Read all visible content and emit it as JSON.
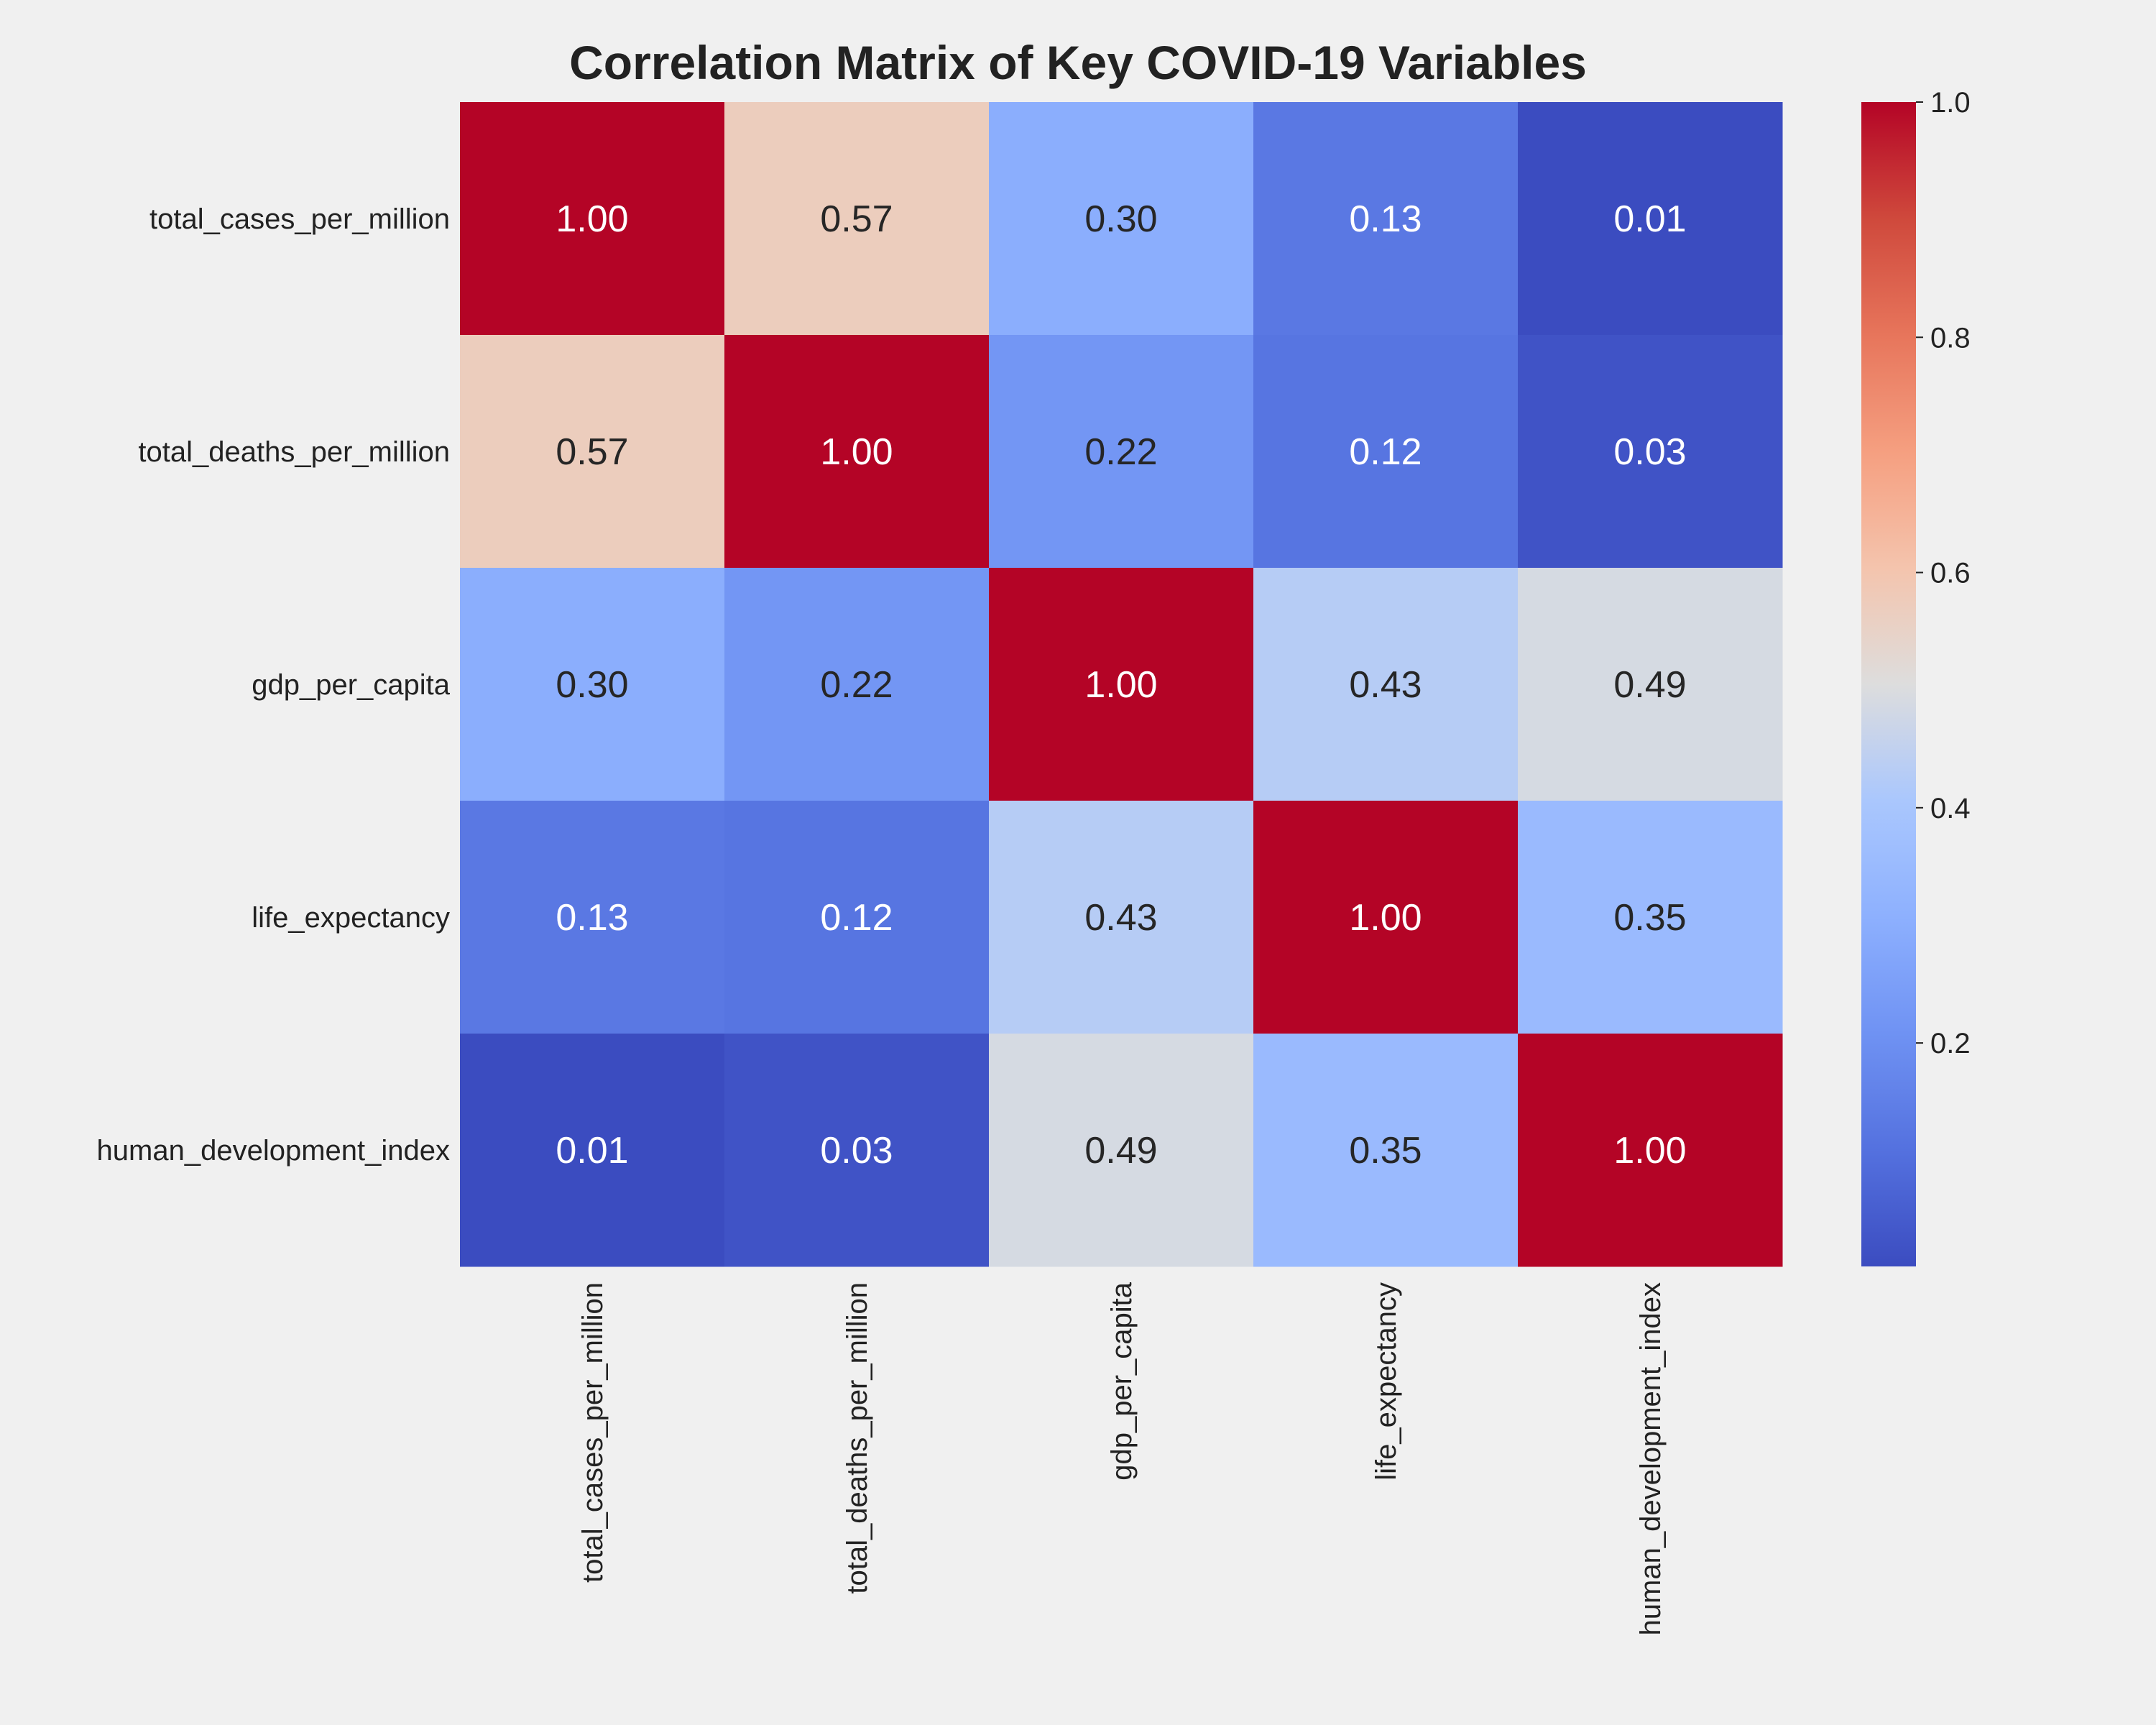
{
  "chart_data": {
    "type": "heatmap",
    "title": "Correlation Matrix of Key COVID-19 Variables",
    "row_labels": [
      "total_cases_per_million",
      "total_deaths_per_million",
      "gdp_per_capita",
      "life_expectancy",
      "human_development_index"
    ],
    "col_labels": [
      "total_cases_per_million",
      "total_deaths_per_million",
      "gdp_per_capita",
      "life_expectancy",
      "human_development_index"
    ],
    "values": [
      [
        1.0,
        0.57,
        0.3,
        0.13,
        0.01
      ],
      [
        0.57,
        1.0,
        0.22,
        0.12,
        0.03
      ],
      [
        0.3,
        0.22,
        1.0,
        0.43,
        0.49
      ],
      [
        0.13,
        0.12,
        0.43,
        1.0,
        0.35
      ],
      [
        0.01,
        0.03,
        0.49,
        0.35,
        1.0
      ]
    ],
    "value_format": "0.00",
    "colormap": "coolwarm",
    "color_range": [
      0.01,
      1.0
    ],
    "colorbar": {
      "ticks": [
        0.2,
        0.4,
        0.6,
        0.8,
        1.0
      ],
      "tick_labels": [
        "0.2",
        "0.4",
        "0.6",
        "0.8",
        "1.0"
      ],
      "placement": "right"
    },
    "xtick_rotation": "vertical"
  }
}
